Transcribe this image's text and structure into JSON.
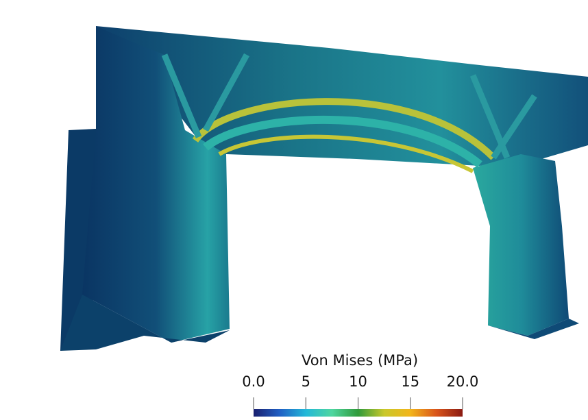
{
  "colorbar": {
    "title": "Von Mises (MPa)",
    "range": [
      0,
      20
    ],
    "ticks": [
      {
        "value": 0,
        "label": "0.0"
      },
      5,
      10,
      15,
      {
        "value": 20,
        "label": "20.0"
      }
    ],
    "colormap": [
      "#1a1f6e",
      "#1f5fc4",
      "#22b8d8",
      "#4fd6a0",
      "#2f9a3a",
      "#c9c82a",
      "#f2b51a",
      "#d9541a",
      "#8a1a12"
    ]
  }
}
